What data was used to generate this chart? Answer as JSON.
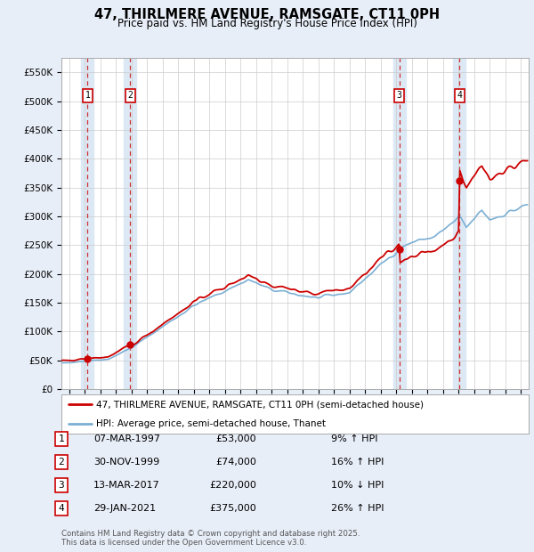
{
  "title": "47, THIRLMERE AVENUE, RAMSGATE, CT11 0PH",
  "subtitle": "Price paid vs. HM Land Registry's House Price Index (HPI)",
  "legend_line1": "47, THIRLMERE AVENUE, RAMSGATE, CT11 0PH (semi-detached house)",
  "legend_line2": "HPI: Average price, semi-detached house, Thanet",
  "footer1": "Contains HM Land Registry data © Crown copyright and database right 2025.",
  "footer2": "This data is licensed under the Open Government Licence v3.0.",
  "transactions": [
    {
      "num": 1,
      "date": "07-MAR-1997",
      "price": "£53,000",
      "rel": "9% ↑ HPI",
      "year": 1997.18,
      "value": 53000
    },
    {
      "num": 2,
      "date": "30-NOV-1999",
      "price": "£74,000",
      "rel": "16% ↑ HPI",
      "year": 1999.92,
      "value": 74000
    },
    {
      "num": 3,
      "date": "13-MAR-2017",
      "price": "£220,000",
      "rel": "10% ↓ HPI",
      "year": 2017.19,
      "value": 220000
    },
    {
      "num": 4,
      "date": "29-JAN-2021",
      "price": "£375,000",
      "rel": "26% ↑ HPI",
      "year": 2021.07,
      "value": 375000
    }
  ],
  "hpi_color": "#7bafd4",
  "price_color": "#cc0000",
  "band_color": "#dce9f5",
  "background_color": "#e8eef8",
  "plot_bg": "#ffffff",
  "ylim": [
    0,
    575000
  ],
  "xlim": [
    1995.5,
    2025.5
  ],
  "yticks": [
    0,
    50000,
    100000,
    150000,
    200000,
    250000,
    300000,
    350000,
    400000,
    450000,
    500000,
    550000
  ],
  "ylabels": [
    "£0",
    "£50K",
    "£100K",
    "£150K",
    "£200K",
    "£250K",
    "£300K",
    "£350K",
    "£400K",
    "£450K",
    "£500K",
    "£550K"
  ]
}
